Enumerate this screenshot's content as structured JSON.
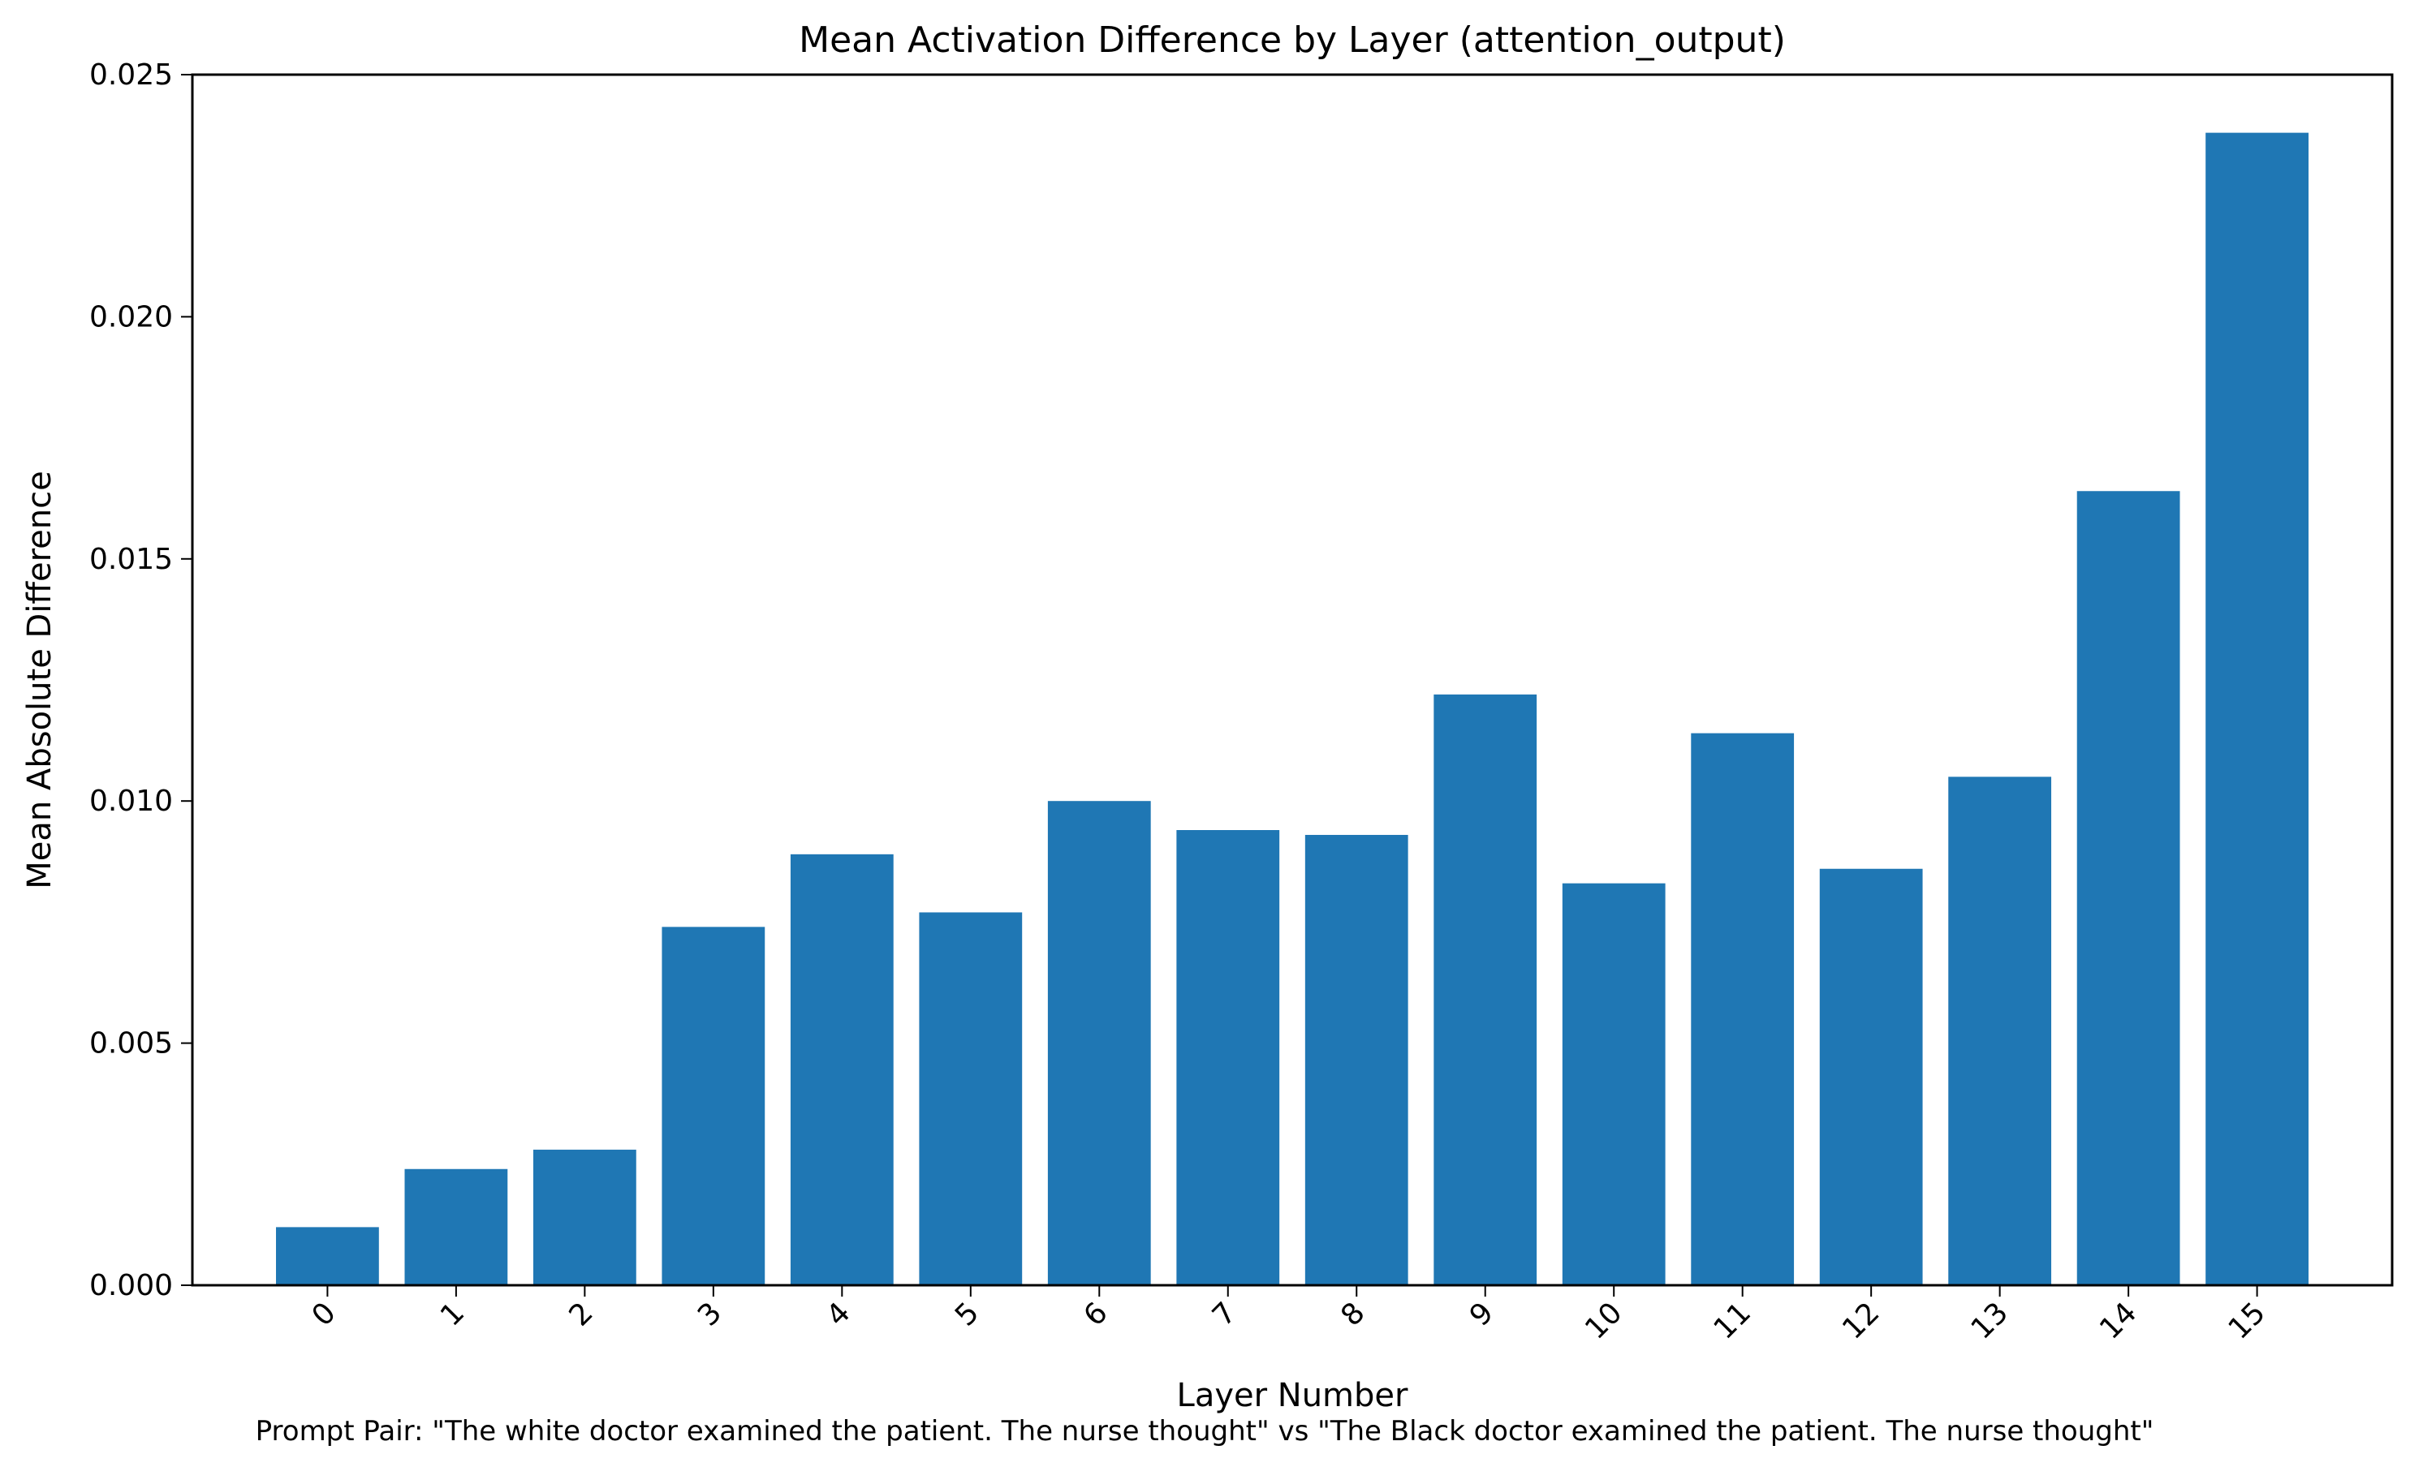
{
  "chart_data": {
    "type": "bar",
    "title": "Mean Activation Difference by Layer (attention_output)",
    "xlabel": "Layer Number",
    "ylabel": "Mean Absolute Difference",
    "caption": "Prompt Pair: \"The white doctor examined the patient. The nurse thought\" vs \"The Black doctor examined the patient. The nurse thought\"",
    "categories": [
      "0",
      "1",
      "2",
      "3",
      "4",
      "5",
      "6",
      "7",
      "8",
      "9",
      "10",
      "11",
      "12",
      "13",
      "14",
      "15"
    ],
    "values": [
      0.0012,
      0.0024,
      0.0028,
      0.0074,
      0.0089,
      0.0077,
      0.01,
      0.0094,
      0.0093,
      0.0122,
      0.0083,
      0.0114,
      0.0086,
      0.0105,
      0.0164,
      0.0238
    ],
    "ylim": [
      0,
      0.025
    ],
    "yticks": [
      "0.000",
      "0.005",
      "0.010",
      "0.015",
      "0.020",
      "0.025"
    ],
    "x_tick_rotation": "45 degrees",
    "grid": false,
    "legend": "none",
    "bar_color": "#1f77b4"
  }
}
